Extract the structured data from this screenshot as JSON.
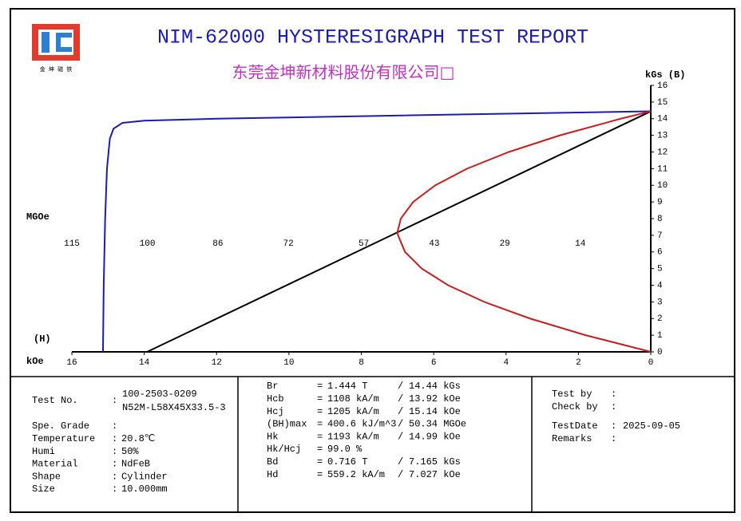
{
  "chart_data": {
    "type": "line",
    "title": "NIM-62000 HYSTERESIGRAPH TEST REPORT",
    "subtitle": "东莞金坤新材料股份有限公司□",
    "logo_caption": "金 坤 磁 铁",
    "x_label": "kOe",
    "x_label_symbol": "(H)",
    "x2_label": "MGOe",
    "y_label": "kGs (B)",
    "xlim": [
      16,
      0
    ],
    "xticks": [
      16,
      14,
      12,
      10,
      8,
      6,
      4,
      2,
      0
    ],
    "x2lim": [
      115,
      0
    ],
    "x2ticks": [
      115,
      100,
      86,
      72,
      57,
      43,
      29,
      14
    ],
    "ylim": [
      0,
      16
    ],
    "yticks": [
      0,
      1,
      2,
      3,
      4,
      5,
      6,
      7,
      8,
      9,
      10,
      11,
      12,
      13,
      14,
      15,
      16
    ],
    "series": [
      {
        "color": "#1c1cb4",
        "x": [
          0,
          4,
          8,
          12,
          14,
          14.6,
          14.85,
          14.95,
          15.03,
          15.08,
          15.12,
          15.14
        ],
        "values": [
          14.44,
          14.3,
          14.15,
          14.0,
          13.88,
          13.75,
          13.4,
          12.8,
          11,
          8,
          4,
          0
        ]
      },
      {
        "color": "#000000",
        "x": [
          0,
          13.92
        ],
        "values": [
          14.44,
          0
        ]
      },
      {
        "color": "#c81e1e",
        "axis": "x2",
        "x": [
          0,
          12.96,
          23.98,
          33.08,
          40.26,
          45.5,
          48.82,
          50.2,
          50.34,
          49.66,
          47.2,
          42.8,
          36.48,
          28.22,
          18.04,
          5.94,
          0
        ],
        "values": [
          0,
          1,
          2,
          3,
          4,
          5,
          6,
          7,
          7.165,
          8,
          9,
          10,
          11,
          12,
          13,
          14,
          14.44
        ]
      }
    ]
  },
  "report": {
    "colon": ":",
    "eq": "=",
    "slash": "/",
    "test_no": {
      "label": "Test No.",
      "values": [
        "100-2503-0209",
        "N52M-L58X45X33.5-3"
      ]
    },
    "left": [
      {
        "label": "Spe. Grade"
      },
      {
        "label": "Temperature",
        "value": "20.8℃"
      },
      {
        "label": "Humi",
        "value": "50%"
      },
      {
        "label": "Material",
        "value": "NdFeB"
      },
      {
        "label": "Shape",
        "value": "Cylinder"
      },
      {
        "label": "Size",
        "value": "10.000mm"
      }
    ],
    "middle": [
      {
        "name": "Br",
        "si": "1.444 T",
        "cgs": "14.44 kGs"
      },
      {
        "name": "Hcb",
        "si": "1108 kA/m",
        "cgs": "13.92 kOe"
      },
      {
        "name": "Hcj",
        "si": "1205 kA/m",
        "cgs": "15.14 kOe"
      },
      {
        "name": "(BH)max",
        "si": "400.6 kJ/m^3",
        "cgs": "50.34 MGOe"
      },
      {
        "name": "Hk",
        "si": "1193 kA/m",
        "cgs": "14.99 kOe"
      },
      {
        "name": "Hk/Hcj",
        "si": "99.0 %"
      },
      {
        "name": "Bd",
        "si": "0.716 T",
        "cgs": "7.165 kGs"
      },
      {
        "name": "Hd",
        "si": "559.2 kA/m",
        "cgs": "7.027 kOe"
      }
    ],
    "right": [
      {
        "label": "Test by"
      },
      {
        "label": "Check by"
      },
      {
        "label": "TestDate",
        "value": "2025-09-05"
      },
      {
        "label": "Remarks"
      }
    ]
  }
}
